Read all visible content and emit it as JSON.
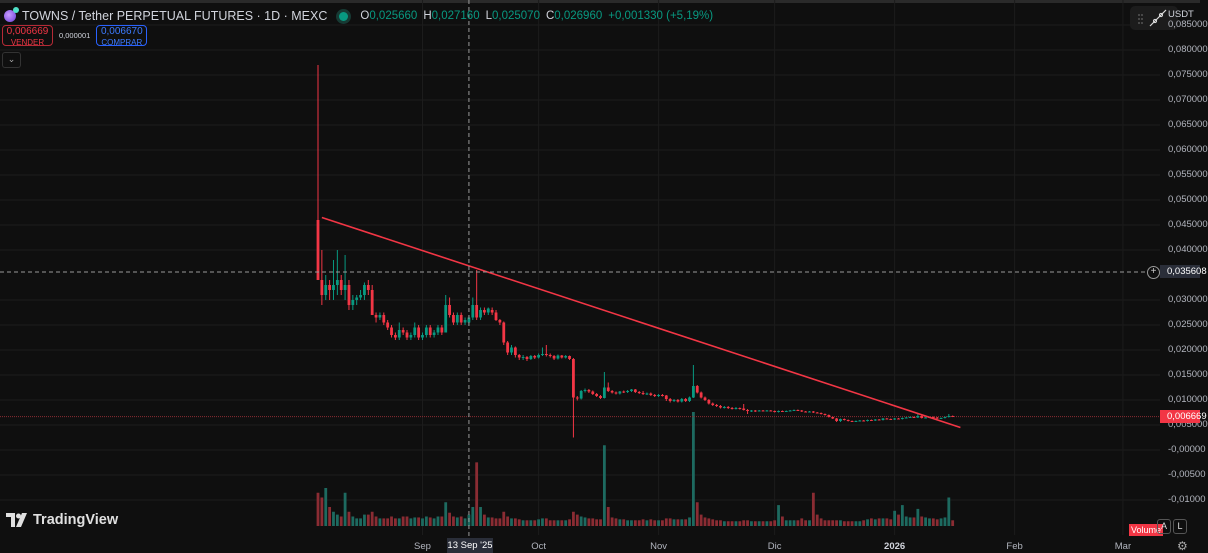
{
  "header": {
    "symbol_title": "TOWNS / Tether PERPETUAL FUTURES · 1D · MEXC",
    "ohlc": {
      "o_label": "O",
      "o": "0,025660",
      "h_label": "H",
      "h": "0,027160",
      "l_label": "L",
      "l": "0,025070",
      "c_label": "C",
      "c": "0,026960",
      "change": "+0,001330 (+5,19%)"
    },
    "sell": {
      "price": "0,006669",
      "label": "VENDER"
    },
    "spread": "0,000001",
    "buy": {
      "price": "0,006670",
      "label": "COMPRAR"
    },
    "market_status_icon": "market-open-dot"
  },
  "price_scale": {
    "currency": "USDT",
    "labels": [
      "0,085000",
      "0,080000",
      "0,075000",
      "0,070000",
      "0,065000",
      "0,060000",
      "0,055000",
      "0,050000",
      "0,045000",
      "0,040000",
      "0,030000",
      "0,025000",
      "0,020000",
      "0,015000",
      "0,010000",
      "0,005000",
      "-0,00000",
      "-0,00500",
      "-0,01000"
    ],
    "crosshair_price": "0,035608",
    "last_price": "0,006669"
  },
  "time_scale": {
    "labels": [
      {
        "text": "Sep",
        "date": "2025-09-01"
      },
      {
        "text": "Oct",
        "date": "2025-10-01"
      },
      {
        "text": "Nov",
        "date": "2025-11-01"
      },
      {
        "text": "Dic",
        "date": "2025-12-01"
      },
      {
        "text": "2026",
        "date": "2026-01-01",
        "bold": true
      },
      {
        "text": "Feb",
        "date": "2026-02-01"
      },
      {
        "text": "Mar",
        "date": "2026-03-01"
      }
    ],
    "crosshair_date": "13 Sep '25"
  },
  "bottom": {
    "volume_label": "Volume",
    "auto_btn": "A",
    "log_btn": "L",
    "settings_icon": "gear-icon"
  },
  "logo": "TradingView",
  "colors": {
    "up": "#089981",
    "down": "#f23645",
    "vol_up": "#1d6a60",
    "vol_down": "#8b2c33",
    "trendline": "#f23645",
    "bg": "#0f0f0f",
    "grid": "#1c1c1c"
  },
  "chart_data": {
    "type": "candlestick",
    "interval": "1D",
    "start_date": "2025-08-05",
    "ylim": [
      -0.0125,
      0.085
    ],
    "grid": true,
    "crosshair": {
      "date": "2025-09-13",
      "price": 0.035608
    },
    "last_price": 0.006669,
    "trendline": {
      "from": [
        "2025-08-06",
        0.0465
      ],
      "to": [
        "2026-01-18",
        0.0045
      ]
    },
    "candle_format": [
      "open",
      "close",
      "volume",
      "high",
      "low"
    ],
    "candles": [
      [
        0.046,
        0.034,
        35,
        0.077,
        0.034
      ],
      [
        0.034,
        0.031,
        30,
        0.04,
        0.029
      ],
      [
        0.031,
        0.033,
        40,
        0.035,
        0.03
      ],
      [
        0.033,
        0.032,
        20,
        0.034,
        0.03
      ],
      [
        0.032,
        0.033,
        15,
        0.038,
        0.03
      ],
      [
        0.033,
        0.034,
        12,
        0.04,
        0.031
      ],
      [
        0.034,
        0.032,
        10,
        0.035,
        0.031
      ],
      [
        0.032,
        0.033,
        35,
        0.039,
        0.03
      ],
      [
        0.033,
        0.029,
        15,
        0.034,
        0.028
      ],
      [
        0.029,
        0.03,
        10,
        0.031,
        0.028
      ],
      [
        0.03,
        0.0305,
        8,
        0.031,
        0.029
      ],
      [
        0.0305,
        0.031,
        8,
        0.032,
        0.03
      ],
      [
        0.031,
        0.033,
        12,
        0.0335,
        0.03
      ],
      [
        0.033,
        0.032,
        12,
        0.034,
        0.031
      ],
      [
        0.032,
        0.027,
        15,
        0.033,
        0.027
      ],
      [
        0.027,
        0.0265,
        10,
        0.0275,
        0.0255
      ],
      [
        0.0265,
        0.027,
        8,
        0.0275,
        0.026
      ],
      [
        0.027,
        0.0255,
        8,
        0.0275,
        0.025
      ],
      [
        0.0255,
        0.0245,
        8,
        0.026,
        0.024
      ],
      [
        0.0245,
        0.023,
        10,
        0.025,
        0.0225
      ],
      [
        0.023,
        0.0225,
        8,
        0.0235,
        0.022
      ],
      [
        0.0225,
        0.024,
        8,
        0.0255,
        0.022
      ],
      [
        0.024,
        0.0235,
        10,
        0.0245,
        0.023
      ],
      [
        0.0235,
        0.0225,
        10,
        0.024,
        0.022
      ],
      [
        0.0225,
        0.023,
        8,
        0.0235,
        0.022
      ],
      [
        0.023,
        0.0245,
        9,
        0.0255,
        0.0225
      ],
      [
        0.0245,
        0.0225,
        9,
        0.025,
        0.022
      ],
      [
        0.0225,
        0.023,
        8,
        0.0235,
        0.022
      ],
      [
        0.023,
        0.0245,
        10,
        0.025,
        0.0225
      ],
      [
        0.0245,
        0.023,
        9,
        0.025,
        0.0225
      ],
      [
        0.023,
        0.0235,
        8,
        0.024,
        0.0225
      ],
      [
        0.0235,
        0.0245,
        10,
        0.025,
        0.023
      ],
      [
        0.0245,
        0.0235,
        10,
        0.025,
        0.023
      ],
      [
        0.0235,
        0.029,
        25,
        0.031,
        0.0235
      ],
      [
        0.029,
        0.027,
        14,
        0.0305,
        0.0265
      ],
      [
        0.027,
        0.0255,
        10,
        0.0275,
        0.025
      ],
      [
        0.0255,
        0.027,
        9,
        0.0275,
        0.025
      ],
      [
        0.027,
        0.0255,
        10,
        0.0275,
        0.025
      ],
      [
        0.0255,
        0.026,
        8,
        0.0265,
        0.025
      ],
      [
        0.0255,
        0.0265,
        12,
        0.027,
        0.025
      ],
      [
        0.0265,
        0.029,
        20,
        0.0305,
        0.026
      ],
      [
        0.029,
        0.0265,
        67,
        0.036,
        0.026
      ],
      [
        0.0265,
        0.028,
        20,
        0.0285,
        0.026
      ],
      [
        0.028,
        0.0275,
        12,
        0.0285,
        0.027
      ],
      [
        0.0275,
        0.0283,
        9,
        0.0285,
        0.027
      ],
      [
        0.028,
        0.0275,
        9,
        0.0285,
        0.027
      ],
      [
        0.0275,
        0.026,
        8,
        0.028,
        0.0258
      ],
      [
        0.026,
        0.0255,
        8,
        0.0262,
        0.025
      ],
      [
        0.0255,
        0.0215,
        15,
        0.0257,
        0.021
      ],
      [
        0.0215,
        0.0195,
        10,
        0.0218,
        0.019
      ],
      [
        0.0195,
        0.0205,
        8,
        0.021,
        0.019
      ],
      [
        0.0205,
        0.019,
        8,
        0.0207,
        0.0185
      ],
      [
        0.019,
        0.0185,
        7,
        0.0192,
        0.018
      ],
      [
        0.0185,
        0.0186,
        6,
        0.019,
        0.018
      ],
      [
        0.0186,
        0.0182,
        6,
        0.0188,
        0.0178
      ],
      [
        0.0182,
        0.0188,
        6,
        0.019,
        0.018
      ],
      [
        0.0188,
        0.0185,
        6,
        0.019,
        0.0182
      ],
      [
        0.0185,
        0.019,
        7,
        0.0193,
        0.0183
      ],
      [
        0.019,
        0.0192,
        8,
        0.0205,
        0.0188
      ],
      [
        0.0192,
        0.019,
        8,
        0.021,
        0.0187
      ],
      [
        0.019,
        0.0188,
        6,
        0.0193,
        0.0185
      ],
      [
        0.0188,
        0.0183,
        6,
        0.019,
        0.018
      ],
      [
        0.0183,
        0.0189,
        6,
        0.0191,
        0.0181
      ],
      [
        0.0189,
        0.0185,
        6,
        0.019,
        0.0183
      ],
      [
        0.0185,
        0.0188,
        6,
        0.019,
        0.0183
      ],
      [
        0.0188,
        0.0182,
        7,
        0.0189,
        0.018
      ],
      [
        0.0182,
        0.0105,
        15,
        0.0184,
        0.0025
      ],
      [
        0.0105,
        0.0103,
        12,
        0.0108,
        0.0099
      ],
      [
        0.0103,
        0.0118,
        10,
        0.012,
        0.0101
      ],
      [
        0.0118,
        0.012,
        9,
        0.0123,
        0.0115
      ],
      [
        0.012,
        0.0117,
        8,
        0.0122,
        0.0114
      ],
      [
        0.0117,
        0.0112,
        8,
        0.0119,
        0.011
      ],
      [
        0.0112,
        0.0108,
        7,
        0.0114,
        0.0106
      ],
      [
        0.0108,
        0.0104,
        7,
        0.011,
        0.0102
      ],
      [
        0.0104,
        0.0125,
        85,
        0.0156,
        0.0103
      ],
      [
        0.0125,
        0.0118,
        20,
        0.0135,
        0.0116
      ],
      [
        0.0118,
        0.0115,
        9,
        0.012,
        0.0113
      ],
      [
        0.0115,
        0.0113,
        8,
        0.0117,
        0.0111
      ],
      [
        0.0113,
        0.0117,
        7,
        0.0118,
        0.0111
      ],
      [
        0.0117,
        0.0116,
        7,
        0.0119,
        0.0114
      ],
      [
        0.0116,
        0.0118,
        6,
        0.012,
        0.0114
      ],
      [
        0.0118,
        0.0121,
        6,
        0.0122,
        0.0116
      ],
      [
        0.0121,
        0.0116,
        6,
        0.0122,
        0.0114
      ],
      [
        0.0116,
        0.0114,
        6,
        0.0118,
        0.0112
      ],
      [
        0.0114,
        0.0112,
        7,
        0.0118,
        0.011
      ],
      [
        0.0112,
        0.0113,
        6,
        0.0115,
        0.011
      ],
      [
        0.0113,
        0.011,
        7,
        0.0115,
        0.0108
      ],
      [
        0.011,
        0.0108,
        6,
        0.0112,
        0.0106
      ],
      [
        0.0108,
        0.011,
        6,
        0.0112,
        0.0106
      ],
      [
        0.011,
        0.0109,
        6,
        0.0112,
        0.0107
      ],
      [
        0.0109,
        0.0102,
        8,
        0.011,
        0.0098
      ],
      [
        0.0102,
        0.0098,
        8,
        0.0104,
        0.0095
      ],
      [
        0.0098,
        0.01,
        7,
        0.0102,
        0.0096
      ],
      [
        0.01,
        0.0097,
        7,
        0.0102,
        0.0095
      ],
      [
        0.0097,
        0.0102,
        7,
        0.0104,
        0.0095
      ],
      [
        0.0102,
        0.0098,
        7,
        0.0104,
        0.0096
      ],
      [
        0.0098,
        0.0105,
        9,
        0.0107,
        0.0096
      ],
      [
        0.0105,
        0.0128,
        120,
        0.017,
        0.0104
      ],
      [
        0.0128,
        0.0115,
        25,
        0.013,
        0.0113
      ],
      [
        0.0115,
        0.0105,
        12,
        0.0117,
        0.0103
      ],
      [
        0.0105,
        0.01,
        9,
        0.0107,
        0.0098
      ],
      [
        0.01,
        0.0093,
        8,
        0.0102,
        0.0091
      ],
      [
        0.0093,
        0.009,
        7,
        0.0095,
        0.0088
      ],
      [
        0.009,
        0.0088,
        6,
        0.0092,
        0.0086
      ],
      [
        0.0088,
        0.0085,
        6,
        0.009,
        0.0083
      ],
      [
        0.0085,
        0.0086,
        5,
        0.0088,
        0.0083
      ],
      [
        0.0086,
        0.0084,
        5,
        0.0088,
        0.0082
      ],
      [
        0.0084,
        0.0083,
        5,
        0.0086,
        0.0081
      ],
      [
        0.0083,
        0.0084,
        5,
        0.0086,
        0.0081
      ],
      [
        0.0084,
        0.0083,
        5,
        0.0085,
        0.0081
      ],
      [
        0.0083,
        0.008,
        6,
        0.0092,
        0.0079
      ],
      [
        0.008,
        0.0078,
        6,
        0.0082,
        0.0072
      ],
      [
        0.0078,
        0.0079,
        5,
        0.008,
        0.0076
      ],
      [
        0.0079,
        0.0078,
        5,
        0.008,
        0.0076
      ],
      [
        0.0078,
        0.0079,
        5,
        0.008,
        0.0077
      ],
      [
        0.0079,
        0.0078,
        5,
        0.008,
        0.0077
      ],
      [
        0.0078,
        0.0079,
        5,
        0.008,
        0.0077
      ],
      [
        0.0079,
        0.0078,
        5,
        0.008,
        0.0077
      ],
      [
        0.0078,
        0.0076,
        6,
        0.0079,
        0.0075
      ],
      [
        0.0076,
        0.0078,
        22,
        0.0079,
        0.0075
      ],
      [
        0.0078,
        0.0077,
        10,
        0.0079,
        0.0076
      ],
      [
        0.0077,
        0.0078,
        6,
        0.0079,
        0.0076
      ],
      [
        0.0078,
        0.0079,
        6,
        0.008,
        0.0077
      ],
      [
        0.0079,
        0.008,
        6,
        0.0081,
        0.0078
      ],
      [
        0.008,
        0.0079,
        6,
        0.0081,
        0.0078
      ],
      [
        0.0079,
        0.0077,
        8,
        0.008,
        0.0076
      ],
      [
        0.0077,
        0.0076,
        6,
        0.0078,
        0.0075
      ],
      [
        0.0076,
        0.0077,
        6,
        0.0078,
        0.0075
      ],
      [
        0.0077,
        0.0075,
        35,
        0.0078,
        0.0074
      ],
      [
        0.0075,
        0.0074,
        12,
        0.0076,
        0.0073
      ],
      [
        0.0074,
        0.0072,
        8,
        0.0075,
        0.0071
      ],
      [
        0.0072,
        0.007,
        6,
        0.0073,
        0.0069
      ],
      [
        0.007,
        0.0066,
        6,
        0.0071,
        0.0065
      ],
      [
        0.0066,
        0.0063,
        6,
        0.0067,
        0.0062
      ],
      [
        0.0063,
        0.0058,
        6,
        0.0064,
        0.0056
      ],
      [
        0.0058,
        0.0062,
        6,
        0.0063,
        0.0056
      ],
      [
        0.0062,
        0.006,
        5,
        0.0063,
        0.0059
      ],
      [
        0.006,
        0.0058,
        5,
        0.0061,
        0.0057
      ],
      [
        0.0058,
        0.0057,
        5,
        0.0059,
        0.0056
      ],
      [
        0.0057,
        0.0058,
        5,
        0.0059,
        0.0056
      ],
      [
        0.0058,
        0.0059,
        5,
        0.006,
        0.0057
      ],
      [
        0.0059,
        0.0058,
        6,
        0.006,
        0.0057
      ],
      [
        0.0058,
        0.006,
        7,
        0.0061,
        0.0057
      ],
      [
        0.006,
        0.0059,
        8,
        0.0061,
        0.0058
      ],
      [
        0.0059,
        0.0061,
        7,
        0.0062,
        0.0058
      ],
      [
        0.0061,
        0.006,
        8,
        0.0062,
        0.0059
      ],
      [
        0.006,
        0.0063,
        8,
        0.0064,
        0.0059
      ],
      [
        0.0063,
        0.0062,
        8,
        0.0064,
        0.0061
      ],
      [
        0.0062,
        0.0061,
        7,
        0.0063,
        0.006
      ],
      [
        0.0061,
        0.0063,
        16,
        0.0064,
        0.006
      ],
      [
        0.0063,
        0.0062,
        12,
        0.0064,
        0.0061
      ],
      [
        0.0062,
        0.0064,
        22,
        0.0065,
        0.0061
      ],
      [
        0.0064,
        0.0065,
        10,
        0.0066,
        0.0063
      ],
      [
        0.0065,
        0.0066,
        9,
        0.0067,
        0.0064
      ],
      [
        0.0066,
        0.0065,
        9,
        0.0067,
        0.0064
      ],
      [
        0.0065,
        0.0068,
        18,
        0.0072,
        0.0064
      ],
      [
        0.0068,
        0.0064,
        10,
        0.0069,
        0.0063
      ],
      [
        0.0064,
        0.0065,
        9,
        0.0066,
        0.0063
      ],
      [
        0.0065,
        0.0066,
        8,
        0.0067,
        0.0064
      ],
      [
        0.0066,
        0.0065,
        8,
        0.0067,
        0.0064
      ],
      [
        0.0065,
        0.0063,
        7,
        0.0066,
        0.0062
      ],
      [
        0.0063,
        0.0064,
        8,
        0.0065,
        0.0062
      ],
      [
        0.0064,
        0.0066,
        9,
        0.0067,
        0.0063
      ],
      [
        0.0066,
        0.0068,
        30,
        0.0072,
        0.0065
      ],
      [
        0.0068,
        0.006669,
        6,
        0.0069,
        0.0066
      ]
    ]
  }
}
